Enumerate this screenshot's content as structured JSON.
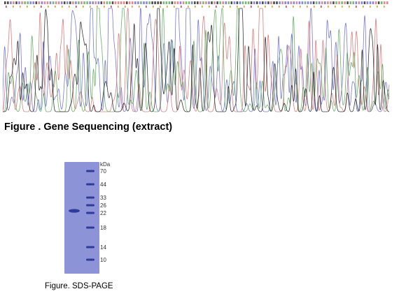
{
  "sequencing_figure": {
    "caption": "Figure . Gene Sequencing (extract)",
    "trace_colors": [
      "#6a6ad8",
      "#d87070",
      "#5aa85a",
      "#222222"
    ],
    "trace_icon": "sequencing-chromatogram"
  },
  "gel_figure": {
    "caption": "Figure. SDS-PAGE",
    "unit_label": "kDa",
    "marker_labels": [
      "70",
      "44",
      "33",
      "26",
      "22",
      "18",
      "14",
      "10"
    ],
    "gel_color": "#8c93d6",
    "band_color": "#2e3a9c"
  }
}
